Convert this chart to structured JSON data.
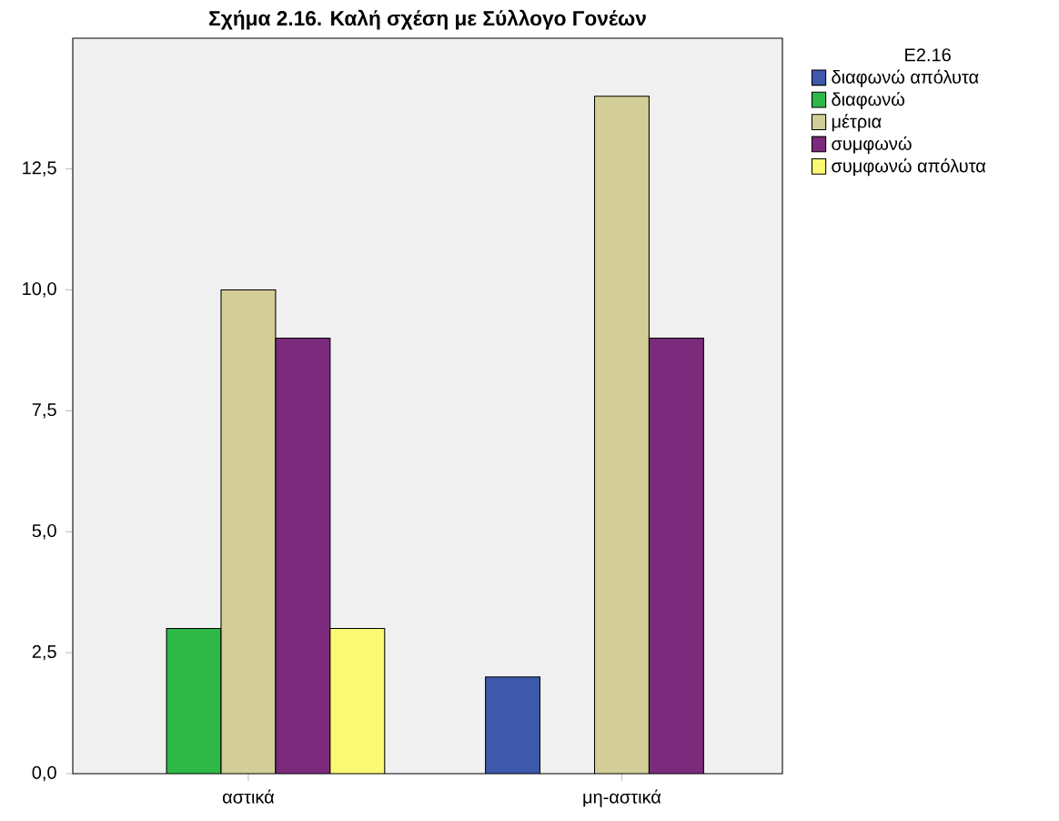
{
  "chart_data": {
    "type": "bar",
    "title": "Σχήμα 2.16. Καλή σχέση με Σύλλογο Γονέων",
    "categories": [
      "αστικά",
      "μη-αστικά"
    ],
    "legend_title": "E2.16",
    "series": [
      {
        "name": "διαφωνώ απόλυτα",
        "color": "#3e58ac",
        "values": [
          null,
          2
        ]
      },
      {
        "name": "διαφωνώ",
        "color": "#2eb848",
        "values": [
          3,
          null
        ]
      },
      {
        "name": "μέτρια",
        "color": "#d3ce97",
        "values": [
          10,
          14
        ]
      },
      {
        "name": "συμφωνώ",
        "color": "#7b2a7c",
        "values": [
          9,
          9
        ]
      },
      {
        "name": "συμφωνώ απόλυτα",
        "color": "#fbf873",
        "values": [
          3,
          null
        ]
      }
    ],
    "ylim": [
      0,
      15.2
    ],
    "yticks": [
      {
        "value": 0,
        "label": "0,0"
      },
      {
        "value": 2.5,
        "label": "2,5"
      },
      {
        "value": 5,
        "label": "5,0"
      },
      {
        "value": 7.5,
        "label": "7,5"
      },
      {
        "value": 10,
        "label": "10,0"
      },
      {
        "value": 12.5,
        "label": "12,5"
      }
    ],
    "grid": false,
    "legend": "right"
  }
}
